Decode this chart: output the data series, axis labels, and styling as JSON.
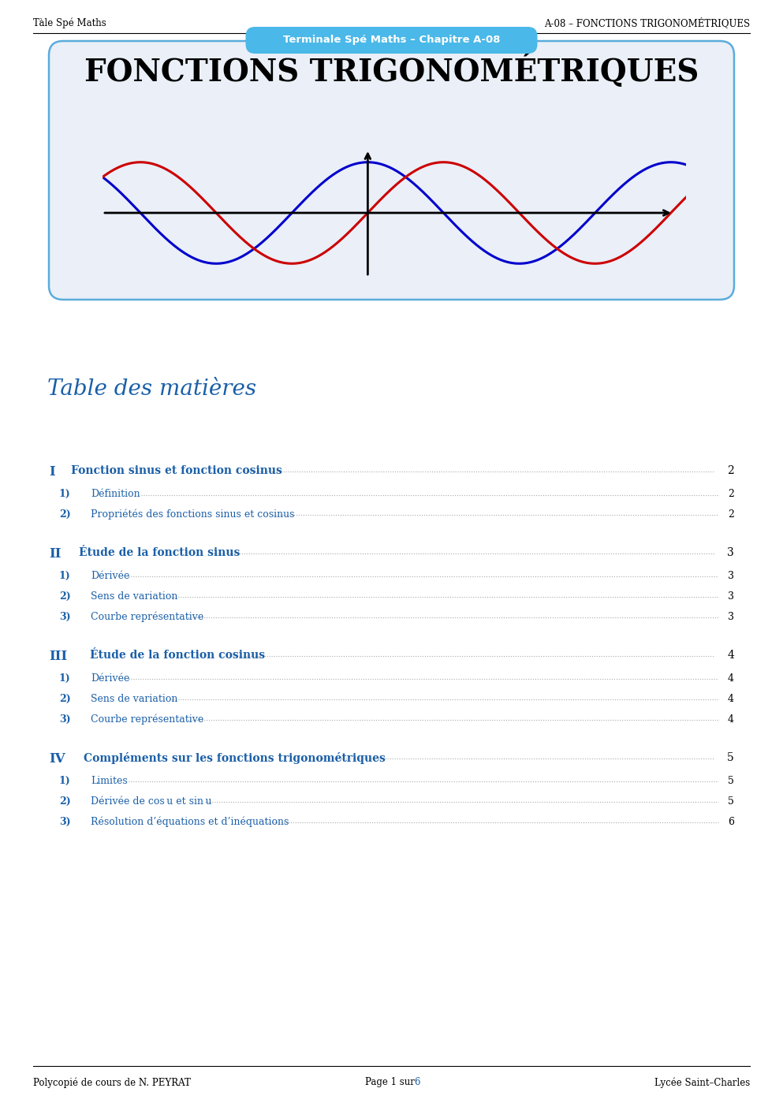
{
  "page_width": 9.93,
  "page_height": 14.04,
  "bg_color": "#ffffff",
  "header_left": "Tàle Spé Maths",
  "header_right": "A-08 – FONCTIONS TRIGONOMÉTRIQUES",
  "header_font_size": 8.5,
  "top_badge_text": "Terminale Spé Maths – Chapitre A-08",
  "top_badge_bg": "#4ab8e8",
  "top_badge_text_color": "#ffffff",
  "title_box_bg": "#eaeff8",
  "title_box_border": "#5aacdc",
  "title_text": "FONCTIONS TRIGONOMÉTRIQUES",
  "title_font_size": 28,
  "toc_title": "Table des matières",
  "toc_title_color": "#1a5fa8",
  "toc_title_font_size": 20,
  "toc_sections": [
    {
      "roman": "I",
      "title": "Fonction sinus et fonction cosinus",
      "page": "2",
      "subsections": [
        {
          "num": "1)",
          "title": "Définition",
          "page": "2"
        },
        {
          "num": "2)",
          "title": "Propriétés des fonctions sinus et cosinus",
          "page": "2"
        }
      ]
    },
    {
      "roman": "II",
      "title": "Étude de la fonction sinus",
      "page": "3",
      "subsections": [
        {
          "num": "1)",
          "title": "Dérivée",
          "page": "3"
        },
        {
          "num": "2)",
          "title": "Sens de variation",
          "page": "3"
        },
        {
          "num": "3)",
          "title": "Courbe représentative",
          "page": "3"
        }
      ]
    },
    {
      "roman": "III",
      "title": "Étude de la fonction cosinus",
      "page": "4",
      "subsections": [
        {
          "num": "1)",
          "title": "Dérivée",
          "page": "4"
        },
        {
          "num": "2)",
          "title": "Sens de variation",
          "page": "4"
        },
        {
          "num": "3)",
          "title": "Courbe représentative",
          "page": "4"
        }
      ]
    },
    {
      "roman": "IV",
      "title": "Compléments sur les fonctions trigonométriques",
      "page": "5",
      "subsections": [
        {
          "num": "1)",
          "title": "Limites",
          "page": "5"
        },
        {
          "num": "2)",
          "title": "Dérivée de cos u et sin u",
          "page": "5"
        },
        {
          "num": "3)",
          "title": "Résolution d’équations et d’inéquations",
          "page": "6"
        }
      ]
    }
  ],
  "footer_left": "Polycopié de cours de N. PEYRAT",
  "footer_center_black": "Page 1 sur ",
  "footer_center_blue": "6",
  "footer_right": "Lycée Saint–Charles",
  "footer_font_size": 8.5,
  "section_color": "#1a5fa8",
  "section_font_size": 10,
  "subsection_font_size": 9,
  "dots_color": "#555555",
  "page_num_color": "#000000",
  "sin_color": "#0000cc",
  "cos_color": "#cc0000"
}
